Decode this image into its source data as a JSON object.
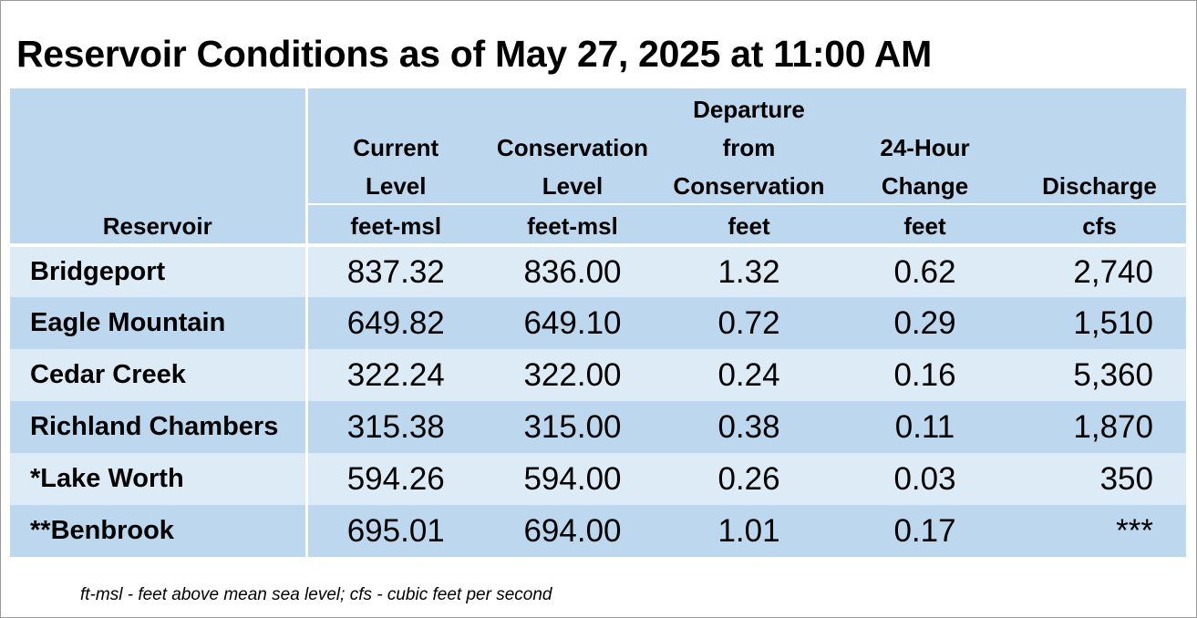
{
  "title": "Reservoir Conditions as of May 27, 2025 at 11:00 AM",
  "columns": [
    {
      "label_lines": [
        "",
        "",
        "",
        ""
      ],
      "sub": "Reservoir"
    },
    {
      "label_lines": [
        "",
        "Current",
        "Level"
      ],
      "unit": "feet-msl"
    },
    {
      "label_lines": [
        "",
        "Conservation",
        "Level"
      ],
      "unit": "feet-msl"
    },
    {
      "label_lines": [
        "Departure",
        "from",
        "Conservation"
      ],
      "unit": "feet"
    },
    {
      "label_lines": [
        "",
        "24-Hour",
        "Change"
      ],
      "unit": "feet"
    },
    {
      "label_lines": [
        "",
        "",
        "Discharge"
      ],
      "unit": "cfs"
    }
  ],
  "rows": [
    {
      "name": "Bridgeport",
      "current": "837.32",
      "conservation": "836.00",
      "departure": "1.32",
      "change": "0.62",
      "discharge": "2,740"
    },
    {
      "name": "Eagle Mountain",
      "current": "649.82",
      "conservation": "649.10",
      "departure": "0.72",
      "change": "0.29",
      "discharge": "1,510"
    },
    {
      "name": "Cedar Creek",
      "current": "322.24",
      "conservation": "322.00",
      "departure": "0.24",
      "change": "0.16",
      "discharge": "5,360"
    },
    {
      "name": "Richland Chambers",
      "current": "315.38",
      "conservation": "315.00",
      "departure": "0.38",
      "change": "0.11",
      "discharge": "1,870"
    },
    {
      "name": "*Lake Worth",
      "current": "594.26",
      "conservation": "594.00",
      "departure": "0.26",
      "change": "0.03",
      "discharge": "350"
    },
    {
      "name": "**Benbrook",
      "current": "695.01",
      "conservation": "694.00",
      "departure": "1.01",
      "change": "0.17",
      "discharge": "***"
    }
  ],
  "footnote": "ft-msl - feet above mean sea level; cfs - cubic feet per second",
  "colors": {
    "header_bg": "#bdd7ee",
    "row_light": "#ddebf7",
    "row_dark": "#bdd7ee"
  }
}
